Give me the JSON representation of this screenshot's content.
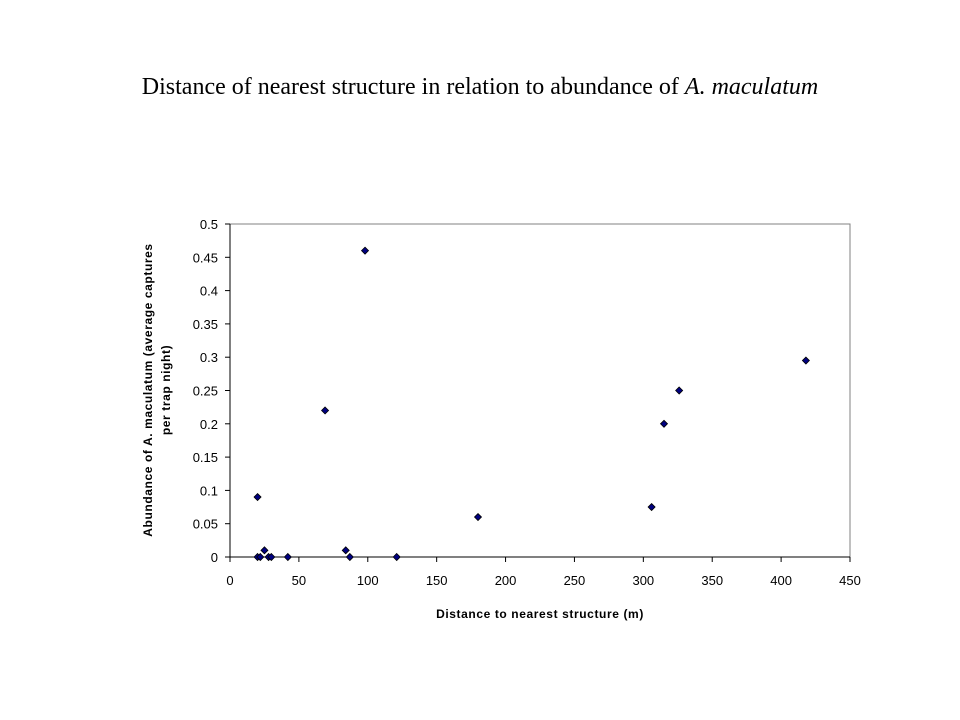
{
  "page": {
    "title_prefix": "Distance of nearest structure in relation to abundance of ",
    "title_italic": "A. maculatum"
  },
  "chart_data": {
    "type": "scatter",
    "title": "Distance of nearest structure in relation to abundance of A. maculatum",
    "xlabel": "Distance to nearest structure (m)",
    "ylabel_line1": "Abundance of A. maculatum (average captures",
    "ylabel_line2": "per trap night)",
    "xlim": [
      0,
      450
    ],
    "ylim": [
      0,
      0.5
    ],
    "xticks": [
      0,
      50,
      100,
      150,
      200,
      250,
      300,
      350,
      400,
      450
    ],
    "xtick_labels": [
      "0",
      "50",
      "100",
      "150",
      "200",
      "250",
      "300",
      "350",
      "400",
      "450"
    ],
    "yticks": [
      0,
      0.05,
      0.1,
      0.15,
      0.2,
      0.25,
      0.3,
      0.35,
      0.4,
      0.45,
      0.5
    ],
    "ytick_labels": [
      "0",
      "0.05",
      "0.1",
      "0.15",
      "0.2",
      "0.25",
      "0.3",
      "0.35",
      "0.4",
      "0.45",
      "0.5"
    ],
    "grid": false,
    "marker": "diamond",
    "marker_color": "#000080",
    "points": [
      {
        "x": 20,
        "y": 0.09
      },
      {
        "x": 20,
        "y": 0
      },
      {
        "x": 22,
        "y": 0
      },
      {
        "x": 25,
        "y": 0.01
      },
      {
        "x": 28,
        "y": 0
      },
      {
        "x": 30,
        "y": 0
      },
      {
        "x": 42,
        "y": 0
      },
      {
        "x": 69,
        "y": 0.22
      },
      {
        "x": 84,
        "y": 0.01
      },
      {
        "x": 87,
        "y": 0
      },
      {
        "x": 98,
        "y": 0.46
      },
      {
        "x": 121,
        "y": 0
      },
      {
        "x": 180,
        "y": 0.06
      },
      {
        "x": 306,
        "y": 0.075
      },
      {
        "x": 315,
        "y": 0.2
      },
      {
        "x": 326,
        "y": 0.25
      },
      {
        "x": 418,
        "y": 0.295
      }
    ]
  }
}
